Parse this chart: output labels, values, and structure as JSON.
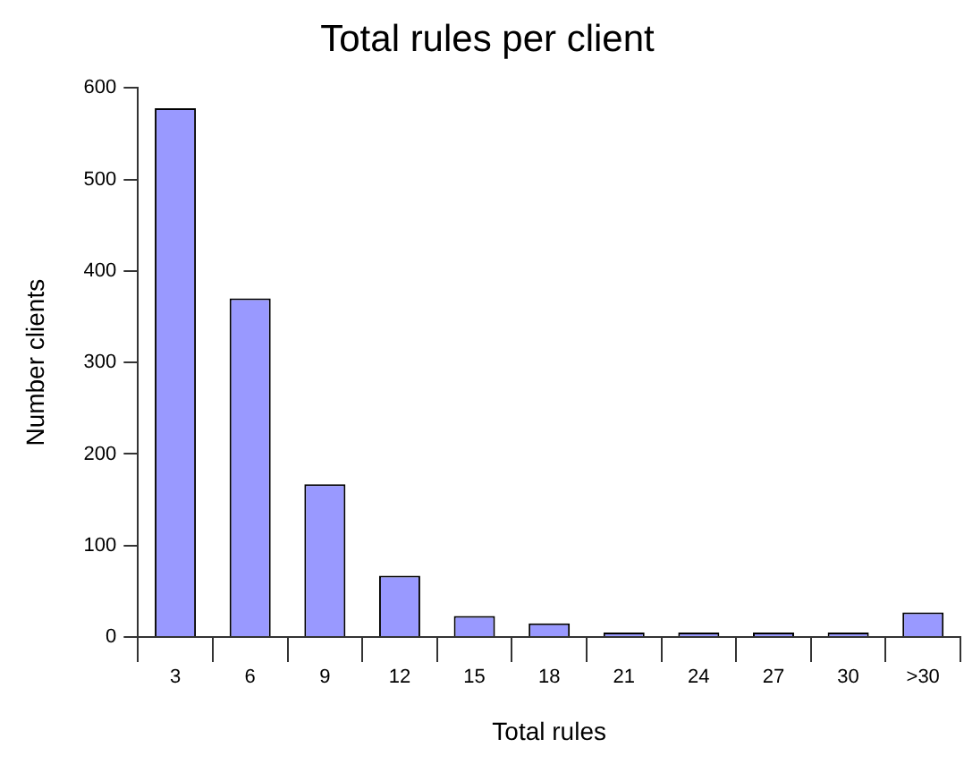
{
  "chart_data": {
    "type": "bar",
    "title": "Total rules per client",
    "xlabel": "Total rules",
    "ylabel": "Number clients",
    "categories": [
      "3",
      "6",
      "9",
      "12",
      "15",
      "18",
      "21",
      "24",
      "27",
      "30",
      ">30"
    ],
    "values": [
      578,
      370,
      167,
      67,
      23,
      15,
      5,
      5,
      5,
      5,
      27
    ],
    "color": "#9999ff",
    "ylim": [
      0,
      600
    ],
    "yticks": [
      0,
      100,
      200,
      300,
      400,
      500,
      600
    ],
    "grid": false,
    "legend": false
  }
}
